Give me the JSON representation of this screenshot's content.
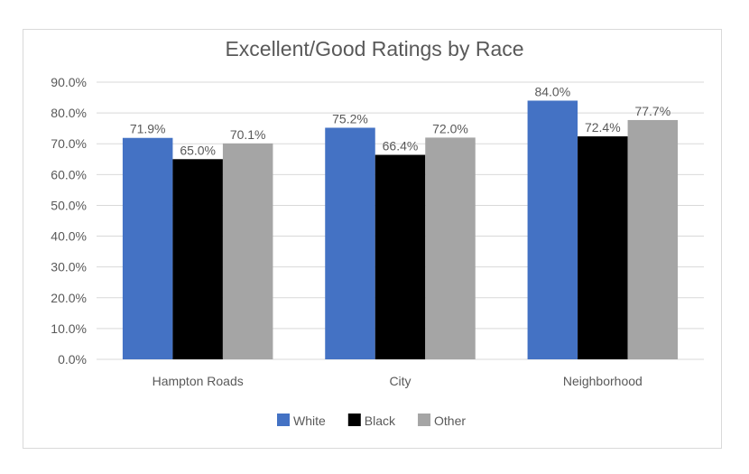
{
  "chart_data": {
    "type": "bar",
    "title": "Excellent/Good Ratings by Race",
    "categories": [
      "Hampton Roads",
      "City",
      "Neighborhood"
    ],
    "series": [
      {
        "name": "White",
        "color": "#4472C4",
        "values": [
          71.9,
          75.2,
          84.0
        ],
        "labels": [
          "71.9%",
          "75.2%",
          "84.0%"
        ]
      },
      {
        "name": "Black",
        "color": "#000000",
        "values": [
          65.0,
          66.4,
          72.4
        ],
        "labels": [
          "65.0%",
          "66.4%",
          "72.4%"
        ]
      },
      {
        "name": "Other",
        "color": "#A5A5A5",
        "values": [
          70.1,
          72.0,
          77.7
        ],
        "labels": [
          "70.1%",
          "72.0%",
          "77.7%"
        ]
      }
    ],
    "ylim": [
      0,
      90
    ],
    "yticks": [
      "0.0%",
      "10.0%",
      "20.0%",
      "30.0%",
      "40.0%",
      "50.0%",
      "60.0%",
      "70.0%",
      "80.0%",
      "90.0%"
    ],
    "grid": true,
    "legend": "bottom"
  }
}
